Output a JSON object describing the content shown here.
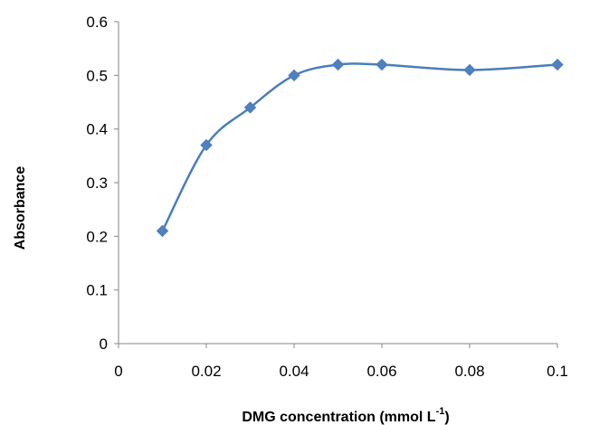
{
  "chart_data": {
    "type": "line",
    "smooth": true,
    "grid": false,
    "legend": "none",
    "xlabel": "DMG concentration (mmol L",
    "xlabel_sup": "-1",
    "xlabel_close": ")",
    "ylabel": "Absorbance",
    "xlim": [
      0,
      0.1
    ],
    "ylim": [
      0,
      0.6
    ],
    "xticks": [
      0,
      0.02,
      0.04,
      0.06,
      0.08,
      0.1
    ],
    "yticks": [
      0,
      0.1,
      0.2,
      0.3,
      0.4,
      0.5,
      0.6
    ],
    "xtick_labels": [
      "0",
      "0.02",
      "0.04",
      "0.06",
      "0.08",
      "0.1"
    ],
    "ytick_labels": [
      "0",
      "0.1",
      "0.2",
      "0.3",
      "0.4",
      "0.5",
      "0.6"
    ],
    "series": [
      {
        "x": [
          0.01,
          0.02,
          0.03,
          0.04,
          0.05,
          0.06,
          0.08,
          0.1
        ],
        "y": [
          0.21,
          0.37,
          0.44,
          0.5,
          0.52,
          0.52,
          0.51,
          0.52
        ],
        "color": "#4a7ebb",
        "marker": "diamond",
        "marker_color": "#4f81bd"
      }
    ]
  }
}
